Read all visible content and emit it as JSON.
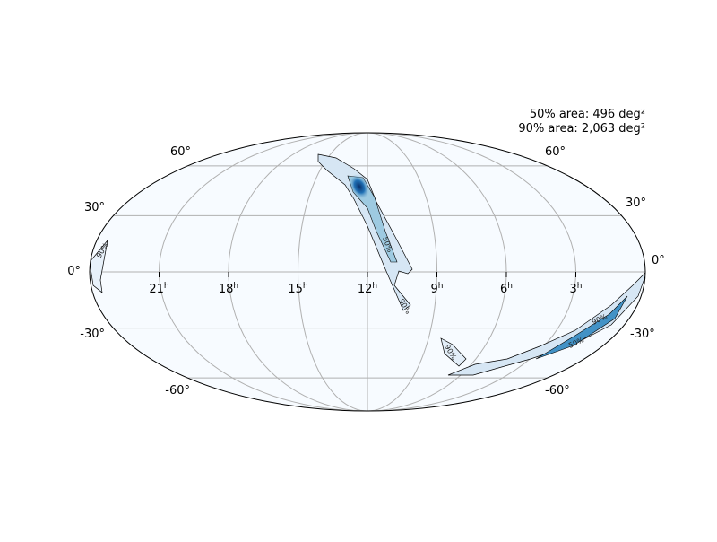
{
  "annotations": [
    "50% area: 496 deg²",
    "90% area: 2,063 deg²"
  ],
  "ra_labels": [
    {
      "value": "21",
      "unit": "h"
    },
    {
      "value": "18",
      "unit": "h"
    },
    {
      "value": "15",
      "unit": "h"
    },
    {
      "value": "12",
      "unit": "h"
    },
    {
      "value": "9",
      "unit": "h"
    },
    {
      "value": "6",
      "unit": "h"
    },
    {
      "value": "3",
      "unit": "h"
    }
  ],
  "dec_labels_left": [
    "60°",
    "30°",
    "0°",
    "-30°",
    "-60°"
  ],
  "dec_labels_right": [
    "60°",
    "30°",
    "0°",
    "-30°",
    "-60°"
  ],
  "contour_labels": [
    "90%",
    "50%"
  ]
}
